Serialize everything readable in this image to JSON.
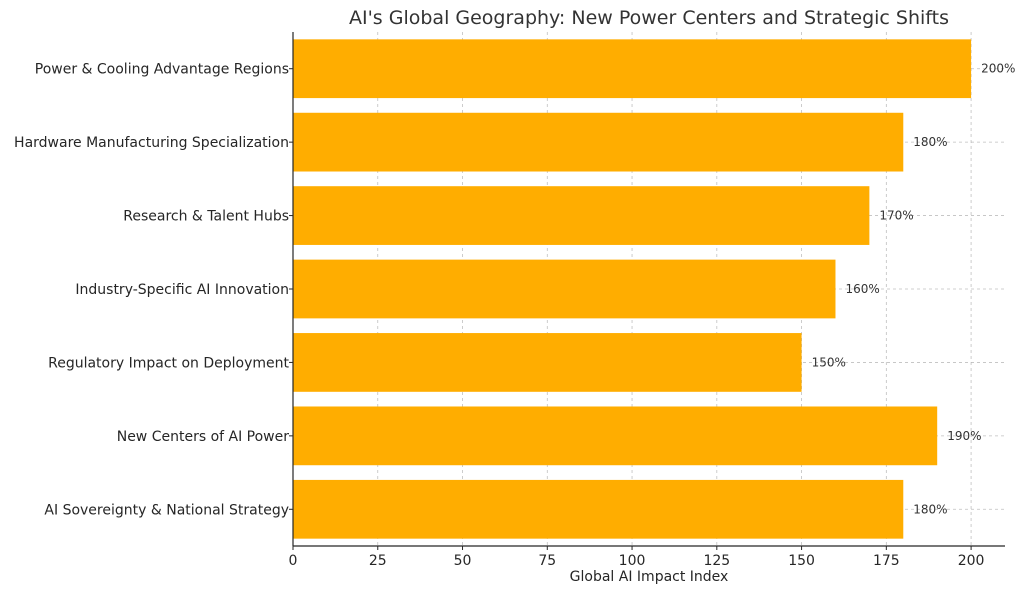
{
  "chart_data": {
    "type": "bar",
    "orientation": "horizontal",
    "title": "AI's Global Geography: New Power Centers and Strategic Shifts",
    "xlabel": "Global AI Impact Index",
    "ylabel": "",
    "xlim": [
      0,
      210
    ],
    "xticks": [
      0,
      25,
      50,
      75,
      100,
      125,
      150,
      175,
      200
    ],
    "grid": true,
    "bar_color": "#ffad00",
    "categories": [
      "AI Sovereignty & National Strategy",
      "New Centers of AI Power",
      "Regulatory Impact on Deployment",
      "Industry-Specific AI Innovation",
      "Research & Talent Hubs",
      "Hardware Manufacturing Specialization",
      "Power & Cooling Advantage Regions"
    ],
    "values": [
      180,
      190,
      150,
      160,
      170,
      180,
      200
    ],
    "value_labels": [
      "180%",
      "190%",
      "150%",
      "160%",
      "170%",
      "180%",
      "200%"
    ]
  }
}
